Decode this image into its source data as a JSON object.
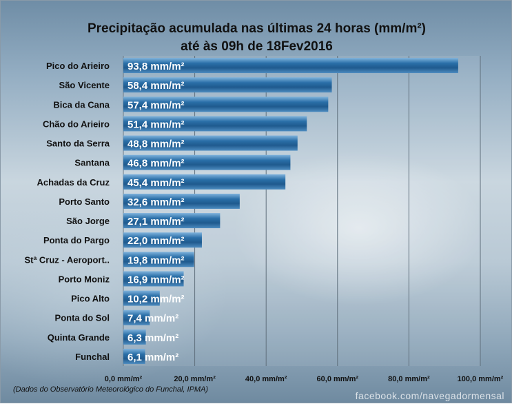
{
  "chart_data": {
    "type": "bar",
    "orientation": "horizontal",
    "title": "Precipitação acumulada nas últimas 24 horas (mm/m²)",
    "subtitle": "até às 09h de 18Fev2016",
    "categories": [
      "Pico do Arieiro",
      "São Vicente",
      "Bica da Cana",
      "Chão do Arieiro",
      "Santo da Serra",
      "Santana",
      "Achadas da Cruz",
      "Porto Santo",
      "São Jorge",
      "Ponta do Pargo",
      "Stª Cruz - Aeroport..",
      "Porto Moniz",
      "Pico Alto",
      "Ponta do Sol",
      "Quinta Grande",
      "Funchal"
    ],
    "values": [
      93.8,
      58.4,
      57.4,
      51.4,
      48.8,
      46.8,
      45.4,
      32.6,
      27.1,
      22.0,
      19.8,
      16.9,
      10.2,
      7.4,
      6.3,
      6.1
    ],
    "data_labels": [
      "93,8 mm/m²",
      "58,4 mm/m²",
      "57,4 mm/m²",
      "51,4 mm/m²",
      "48,8 mm/m²",
      "46,8 mm/m²",
      "45,4 mm/m²",
      "32,6 mm/m²",
      "27,1 mm/m²",
      "22,0 mm/m²",
      "19,8 mm/m²",
      "16,9 mm/m²",
      "10,2 mm/m²",
      "7,4 mm/m²",
      "6,3 mm/m²",
      "6,1 mm/m²"
    ],
    "xticks": [
      0,
      20,
      40,
      60,
      80,
      100
    ],
    "xtick_labels": [
      "0,0 mm/m²",
      "20,0 mm/m²",
      "40,0 mm/m²",
      "60,0 mm/m²",
      "80,0 mm/m²",
      "100,0 mm/m²"
    ],
    "xlim": [
      0,
      100
    ],
    "grid": true,
    "bar_color": "#2a6fa8"
  },
  "source_note": "(Dados do Observatório Meteorológico do Funchal, IPMA)",
  "watermark": "facebook.com/navegadormensal"
}
